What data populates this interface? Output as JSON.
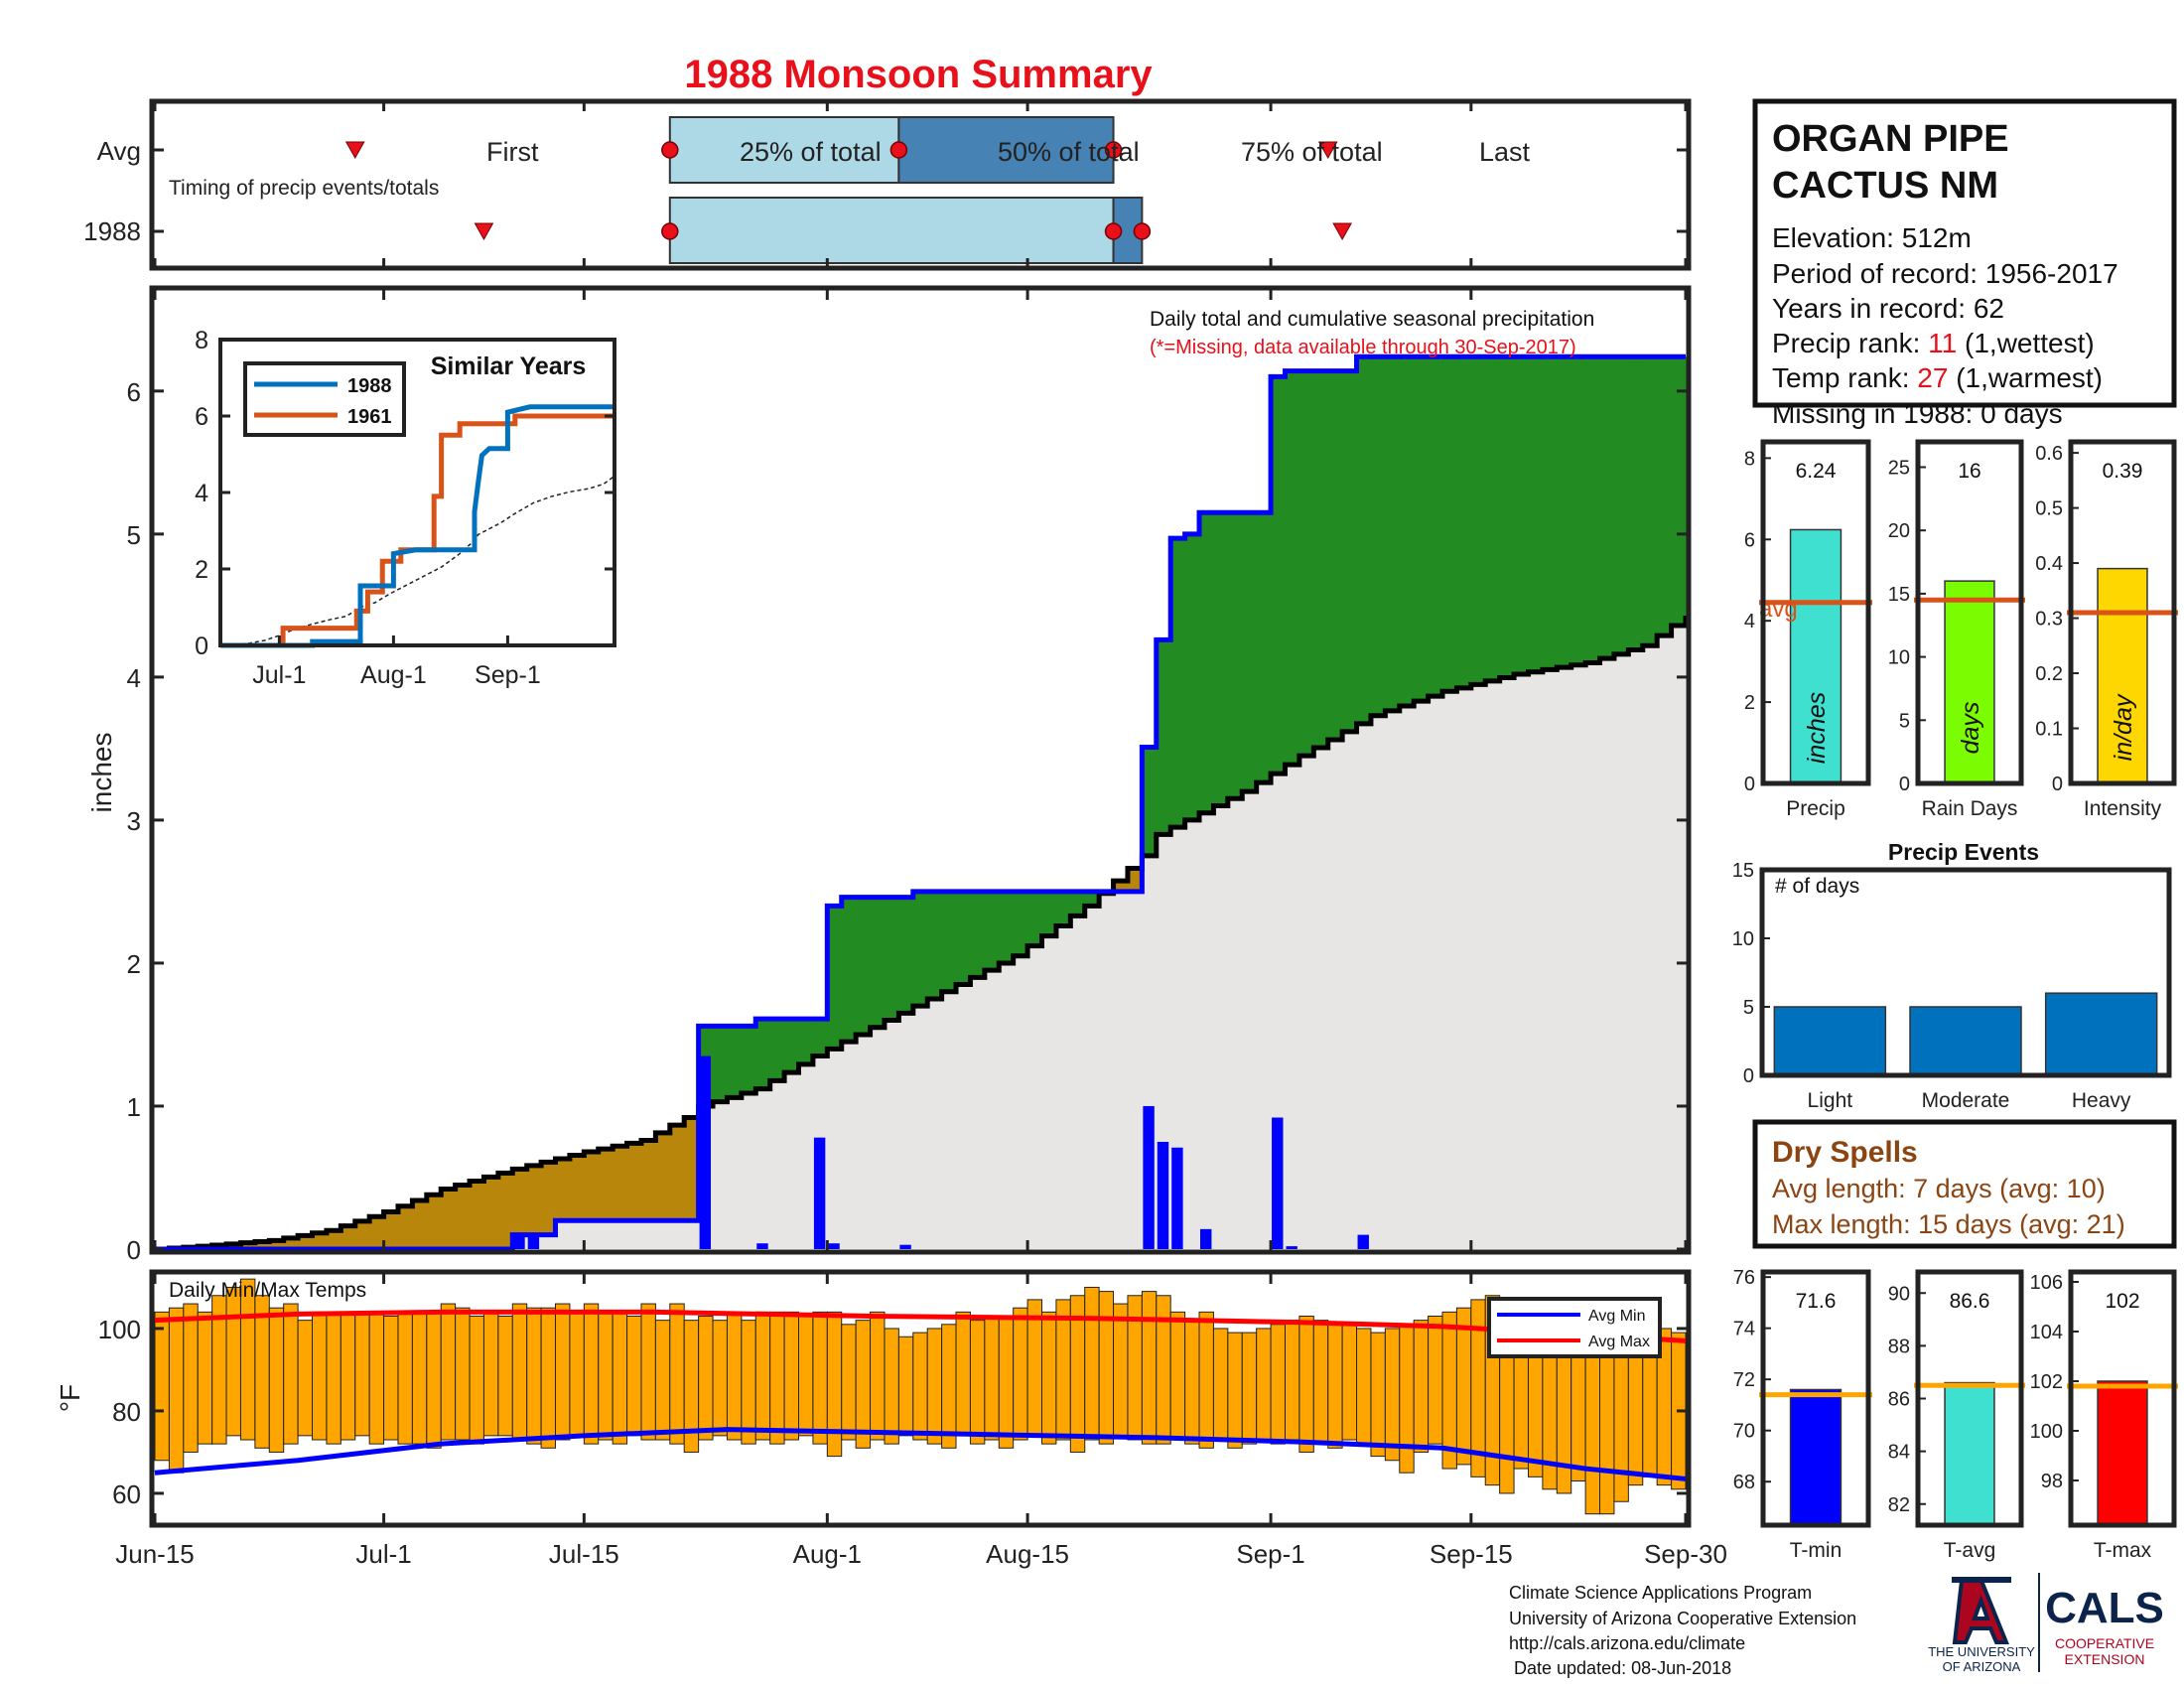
{
  "title": "1988 Monsoon Summary",
  "timing": {
    "row_labels": [
      "Avg",
      "1988"
    ],
    "caption": "Timing of precip events/totals",
    "avg_markers": [
      {
        "label": "First",
        "day": 14
      },
      {
        "label": "25% of total",
        "day": 36
      },
      {
        "label": "50% of total",
        "day": 52
      },
      {
        "label": "75% of total",
        "day": 67
      },
      {
        "label": "Last",
        "day": 82
      }
    ],
    "year_markers": {
      "first": 23,
      "p25": 36,
      "p50": 67,
      "p75": 69,
      "last": 83
    }
  },
  "station": {
    "name_line1": "ORGAN PIPE",
    "name_line2": "CACTUS NM",
    "elevation": "Elevation: 512m",
    "period": "Period of record: 1956-2017",
    "years": "Years in record: 62",
    "precip_rank_label": "Precip rank: ",
    "precip_rank_value": "11",
    "precip_rank_note": " (1,wettest)",
    "temp_rank_label": "Temp rank: ",
    "temp_rank_value": "27",
    "temp_rank_note": " (1,warmest)",
    "missing": "Missing in 1988: 0 days"
  },
  "main_chart": {
    "annotation": "Daily total and cumulative seasonal precipitation",
    "missing_note": "(*=Missing, data available through 30-Sep-2017)",
    "ylabel": "inches",
    "yticks": [
      "0",
      "1",
      "2",
      "3",
      "4",
      "5",
      "6"
    ],
    "xticks": [
      "Jun-15",
      "Jul-1",
      "Jul-15",
      "Aug-1",
      "Aug-15",
      "Sep-1",
      "Sep-15",
      "Sep-30"
    ]
  },
  "inset": {
    "title": "Similar Years",
    "legend": [
      "1988",
      "1961"
    ],
    "yticks": [
      "0",
      "2",
      "4",
      "6",
      "8"
    ],
    "xticks": [
      "Jul-1",
      "Aug-1",
      "Sep-1"
    ]
  },
  "temp_chart": {
    "caption": "Daily Min/Max Temps",
    "ylabel": "°F",
    "yticks": [
      "60",
      "80",
      "100"
    ],
    "legend": [
      "Avg Min",
      "Avg Max"
    ]
  },
  "stat_bars": [
    {
      "label": "Precip",
      "value_text": "6.24",
      "unit": "inches",
      "avg_label": "avg",
      "yticks": [
        "0",
        "2",
        "4",
        "6",
        "8"
      ]
    },
    {
      "label": "Rain Days",
      "value_text": "16",
      "unit": "days",
      "yticks": [
        "0",
        "5",
        "10",
        "15",
        "20",
        "25"
      ]
    },
    {
      "label": "Intensity",
      "value_text": "0.39",
      "unit": "in/day",
      "yticks": [
        "0",
        "0.1",
        "0.2",
        "0.3",
        "0.4",
        "0.5",
        "0.6"
      ]
    }
  ],
  "precip_events": {
    "title": "Precip Events",
    "caption": "# of days",
    "yticks": [
      "0",
      "5",
      "10",
      "15"
    ],
    "categories": [
      "Light",
      "Moderate",
      "Heavy"
    ]
  },
  "dry_spells": {
    "title": "Dry Spells",
    "avg_length": "Avg length: 7 days (avg: 10)",
    "max_length": "Max length: 15 days (avg: 21)"
  },
  "temp_bars": [
    {
      "label": "T-min",
      "value_text": "71.6",
      "yticks": [
        "68",
        "70",
        "72",
        "74",
        "76"
      ]
    },
    {
      "label": "T-avg",
      "value_text": "86.6",
      "yticks": [
        "82",
        "84",
        "86",
        "88",
        "90"
      ]
    },
    {
      "label": "T-max",
      "value_text": "102",
      "yticks": [
        "98",
        "100",
        "102",
        "104",
        "106"
      ]
    }
  ],
  "footer": {
    "lines": [
      "Climate Science Applications Program",
      "University of Arizona Cooperative Extension",
      "http://cals.arizona.edu/climate",
      " Date updated: 08-Jun-2018"
    ],
    "ua_line1": "THE UNIVERSITY",
    "ua_line2": "OF ARIZONA",
    "cals": "CALS",
    "coop1": "COOPERATIVE",
    "coop2": "EXTENSION"
  },
  "colors": {
    "title": "#e8101a",
    "green": "#228b22",
    "gold": "#b8860b",
    "gray": "#e8e6e4",
    "blue": "#0000ff",
    "orange": "#ffa500",
    "avg_line": "#d95319",
    "light_box": "#add8e6",
    "dark_box": "#4682b4"
  },
  "chart_data": [
    {
      "type": "area",
      "title": "Daily total and cumulative seasonal precipitation",
      "x_unit": "day index from Jun-15",
      "ylabel": "inches",
      "ylim": [
        0,
        6.7
      ],
      "cumulative_1988": [
        [
          0,
          0
        ],
        [
          25,
          0
        ],
        [
          25,
          0.1
        ],
        [
          28,
          0.1
        ],
        [
          28,
          0.2
        ],
        [
          38,
          0.2
        ],
        [
          38,
          1.56
        ],
        [
          42,
          1.56
        ],
        [
          42,
          1.61
        ],
        [
          47,
          1.61
        ],
        [
          47,
          2.4
        ],
        [
          48,
          2.4
        ],
        [
          48,
          2.46
        ],
        [
          53,
          2.46
        ],
        [
          53,
          2.5
        ],
        [
          69,
          2.5
        ],
        [
          69,
          3.51
        ],
        [
          70,
          3.51
        ],
        [
          70,
          4.26
        ],
        [
          71,
          4.26
        ],
        [
          71,
          4.97
        ],
        [
          72,
          4.97
        ],
        [
          72,
          5.0
        ],
        [
          73,
          5.0
        ],
        [
          73,
          5.15
        ],
        [
          78,
          5.15
        ],
        [
          78,
          6.1
        ],
        [
          79,
          6.1
        ],
        [
          79,
          6.14
        ],
        [
          84,
          6.14
        ],
        [
          84,
          6.24
        ],
        [
          107,
          6.24
        ]
      ],
      "average_cumulative": [
        [
          0,
          0
        ],
        [
          3,
          0.02
        ],
        [
          8,
          0.06
        ],
        [
          12,
          0.13
        ],
        [
          16,
          0.26
        ],
        [
          20,
          0.42
        ],
        [
          25,
          0.56
        ],
        [
          30,
          0.68
        ],
        [
          34,
          0.76
        ],
        [
          37,
          0.92
        ],
        [
          38,
          1.0
        ],
        [
          42,
          1.12
        ],
        [
          46,
          1.35
        ],
        [
          50,
          1.55
        ],
        [
          55,
          1.8
        ],
        [
          60,
          2.05
        ],
        [
          65,
          2.4
        ],
        [
          69,
          2.75
        ],
        [
          70,
          2.9
        ],
        [
          73,
          3.05
        ],
        [
          76,
          3.2
        ],
        [
          80,
          3.45
        ],
        [
          85,
          3.73
        ],
        [
          90,
          3.9
        ],
        [
          95,
          4.02
        ],
        [
          100,
          4.1
        ],
        [
          104,
          4.22
        ],
        [
          107,
          4.43
        ]
      ],
      "daily_precip_1988": [
        [
          25,
          0.1
        ],
        [
          26,
          0.1
        ],
        [
          38,
          1.35
        ],
        [
          42,
          0.04
        ],
        [
          46,
          0.78
        ],
        [
          47,
          0.04
        ],
        [
          52,
          0.03
        ],
        [
          69,
          1.0
        ],
        [
          70,
          0.75
        ],
        [
          71,
          0.71
        ],
        [
          73,
          0.14
        ],
        [
          78,
          0.92
        ],
        [
          79,
          0.02
        ],
        [
          84,
          0.1
        ]
      ],
      "legend": []
    },
    {
      "type": "line",
      "title": "Similar Years",
      "series": [
        {
          "name": "1988",
          "points": [
            [
              0,
              0
            ],
            [
              25,
              0
            ],
            [
              25,
              0.1
            ],
            [
              38,
              0.1
            ],
            [
              38,
              1.56
            ],
            [
              47,
              1.56
            ],
            [
              47,
              2.4
            ],
            [
              53,
              2.5
            ],
            [
              69,
              2.5
            ],
            [
              69,
              3.5
            ],
            [
              70,
              4.26
            ],
            [
              71,
              4.97
            ],
            [
              73,
              5.15
            ],
            [
              78,
              5.15
            ],
            [
              78,
              6.1
            ],
            [
              84,
              6.24
            ],
            [
              107,
              6.24
            ]
          ]
        },
        {
          "name": "1961",
          "points": [
            [
              0,
              0
            ],
            [
              17,
              0
            ],
            [
              17,
              0.45
            ],
            [
              37,
              0.45
            ],
            [
              37,
              0.9
            ],
            [
              40,
              0.9
            ],
            [
              40,
              1.4
            ],
            [
              44,
              1.4
            ],
            [
              44,
              2.2
            ],
            [
              49,
              2.2
            ],
            [
              49,
              2.5
            ],
            [
              58,
              2.5
            ],
            [
              58,
              3.9
            ],
            [
              60,
              3.9
            ],
            [
              60,
              5.5
            ],
            [
              65,
              5.5
            ],
            [
              65,
              5.8
            ],
            [
              80,
              5.8
            ],
            [
              80,
              6.0
            ],
            [
              107,
              6.0
            ]
          ]
        }
      ],
      "ylim": [
        0,
        8
      ]
    },
    {
      "type": "bar",
      "title": "Daily Min/Max Temps",
      "ylabel": "°F",
      "ylim": [
        53,
        113
      ],
      "avg_min_line": [
        [
          0,
          65
        ],
        [
          10,
          68
        ],
        [
          20,
          72
        ],
        [
          30,
          74
        ],
        [
          40,
          75.5
        ],
        [
          55,
          74.5
        ],
        [
          70,
          73.5
        ],
        [
          80,
          72.5
        ],
        [
          90,
          71
        ],
        [
          100,
          66
        ],
        [
          107,
          63.5
        ]
      ],
      "avg_max_line": [
        [
          0,
          102
        ],
        [
          10,
          103.5
        ],
        [
          20,
          104
        ],
        [
          35,
          104
        ],
        [
          50,
          103
        ],
        [
          65,
          102.5
        ],
        [
          80,
          101.5
        ],
        [
          90,
          100.5
        ],
        [
          100,
          98.5
        ],
        [
          107,
          97
        ]
      ],
      "series": [
        {
          "name": "daily_min",
          "values": [
            68,
            65,
            70,
            72,
            72,
            74,
            73,
            71,
            70,
            72,
            74,
            73,
            72,
            73,
            74,
            72,
            73,
            72,
            72,
            71,
            73,
            73,
            72,
            74,
            74,
            73,
            72,
            71,
            73,
            74,
            72,
            73,
            72,
            74,
            73,
            73,
            72,
            70,
            73,
            74,
            73,
            72,
            73,
            72,
            73,
            74,
            72,
            69,
            73,
            71,
            73,
            72,
            74,
            73,
            72,
            71,
            74,
            72,
            73,
            71,
            73,
            74,
            72,
            73,
            70,
            73,
            72,
            74,
            73,
            72,
            72,
            73,
            72,
            71,
            73,
            71,
            72,
            73,
            72,
            73,
            70,
            72,
            71,
            73,
            72,
            69,
            68,
            65,
            70,
            72,
            66,
            67,
            64,
            62,
            60,
            66,
            64,
            61,
            60,
            63,
            55,
            55,
            58,
            62,
            64,
            62,
            61,
            62
          ]
        },
        {
          "name": "daily_max",
          "values": [
            104,
            105,
            106,
            104,
            108,
            110,
            112,
            108,
            105,
            106,
            102,
            104,
            104,
            104,
            104,
            104,
            103,
            104,
            104,
            104,
            106,
            105,
            103,
            104,
            103,
            106,
            105,
            105,
            106,
            104,
            106,
            104,
            104,
            103,
            106,
            102,
            106,
            102,
            103,
            102,
            104,
            102,
            104,
            104,
            104,
            103,
            104,
            104,
            101,
            102,
            104,
            100,
            98,
            99,
            100,
            101,
            104,
            102,
            103,
            103,
            105,
            107,
            104,
            107,
            108,
            110,
            109,
            106,
            108,
            109,
            108,
            104,
            102,
            104,
            100,
            99,
            99,
            100,
            101,
            102,
            103,
            102,
            101,
            101,
            100,
            99,
            100,
            101,
            102,
            103,
            104,
            105,
            107,
            108,
            106,
            103,
            104,
            102,
            101,
            99,
            100,
            104,
            101,
            102,
            98,
            100,
            99,
            100
          ]
        }
      ]
    },
    {
      "type": "bar",
      "title": "Precip",
      "categories": [
        "Precip"
      ],
      "values": [
        6.24
      ],
      "avg": 4.45,
      "ylim": [
        0,
        8.4
      ]
    },
    {
      "type": "bar",
      "title": "Rain Days",
      "categories": [
        "Rain Days"
      ],
      "values": [
        16
      ],
      "avg": 14.5,
      "ylim": [
        0,
        27
      ]
    },
    {
      "type": "bar",
      "title": "Intensity",
      "categories": [
        "Intensity"
      ],
      "values": [
        0.39
      ],
      "avg": 0.31,
      "ylim": [
        0,
        0.62
      ]
    },
    {
      "type": "bar",
      "title": "Precip Events",
      "categories": [
        "Light",
        "Moderate",
        "Heavy"
      ],
      "values": [
        5,
        5,
        6
      ],
      "ylim": [
        0,
        15
      ]
    },
    {
      "type": "bar",
      "title": "T-min",
      "categories": [
        "T-min"
      ],
      "values": [
        71.6
      ],
      "avg": 71.4,
      "ylim": [
        66.3,
        76.2
      ]
    },
    {
      "type": "bar",
      "title": "T-avg",
      "categories": [
        "T-avg"
      ],
      "values": [
        86.6
      ],
      "avg": 86.5,
      "ylim": [
        81.2,
        90.8
      ]
    },
    {
      "type": "bar",
      "title": "T-max",
      "categories": [
        "T-max"
      ],
      "values": [
        102
      ],
      "avg": 101.8,
      "ylim": [
        96.2,
        106.4
      ]
    }
  ]
}
